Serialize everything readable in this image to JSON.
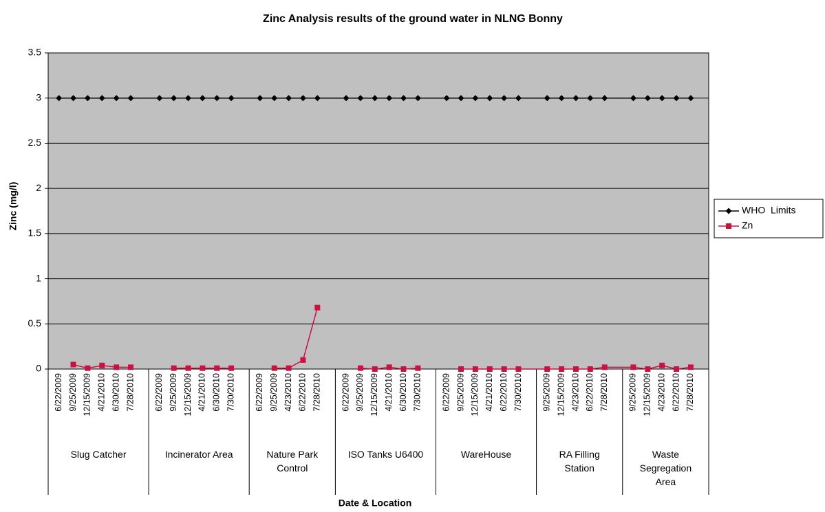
{
  "chart_data": {
    "type": "line",
    "title": "Zinc Analysis results of the ground water in NLNG Bonny",
    "y_label": "Zinc (mg/l)",
    "x_label": "Date & Location",
    "ylim": [
      0,
      3.5
    ],
    "yticks": [
      0,
      0.5,
      1,
      1.5,
      2,
      2.5,
      3,
      3.5
    ],
    "grid": true,
    "legend": "right",
    "groups": [
      {
        "label": "Slug Catcher",
        "categories": [
          "6/22/2009",
          "9/25/2009",
          "12/15/2009",
          "4/21/2010",
          "6/30/2010",
          "7/28/2010"
        ]
      },
      {
        "label": "Incinerator Area",
        "categories": [
          "6/22/2009",
          "9/25/2009",
          "12/15/2009",
          "4/21/2010",
          "6/30/2010",
          "7/30/2010"
        ]
      },
      {
        "label": "Nature Park Control",
        "categories": [
          "6/22/2009",
          "9/25/2009",
          "4/23/2010",
          "6/22/2010",
          "7/28/2010"
        ]
      },
      {
        "label": "ISO Tanks U6400",
        "categories": [
          "6/22/2009",
          "9/25/2009",
          "12/15/2009",
          "4/21/2010",
          "6/30/2010",
          "7/30/2010"
        ]
      },
      {
        "label": "WareHouse",
        "categories": [
          "6/22/2009",
          "9/25/2009",
          "12/15/2009",
          "4/21/2010",
          "6/22/2010",
          "7/30/2010"
        ]
      },
      {
        "label": "RA Filling Station",
        "categories": [
          "9/25/2009",
          "12/15/2009",
          "4/23/2010",
          "6/22/2010",
          "7/28/2010"
        ]
      },
      {
        "label": "Waste Segregation Area",
        "categories": [
          "9/25/2009",
          "12/15/2009",
          "4/23/2010",
          "6/22/2010",
          "7/28/2010"
        ]
      }
    ],
    "series": [
      {
        "name": "WHO  Limits",
        "color": "#000000",
        "marker": "diamond",
        "values": [
          [
            3,
            3,
            3,
            3,
            3,
            3
          ],
          [
            3,
            3,
            3,
            3,
            3,
            3
          ],
          [
            3,
            3,
            3,
            3,
            3
          ],
          [
            3,
            3,
            3,
            3,
            3,
            3
          ],
          [
            3,
            3,
            3,
            3,
            3,
            3
          ],
          [
            3,
            3,
            3,
            3,
            3
          ],
          [
            3,
            3,
            3,
            3,
            3
          ]
        ]
      },
      {
        "name": "Zn",
        "color": "#cc1040",
        "marker": "square",
        "values": [
          [
            null,
            0.05,
            0.01,
            0.04,
            0.02,
            0.02
          ],
          [
            null,
            0.01,
            0.01,
            0.01,
            0.01,
            0.01
          ],
          [
            null,
            0.01,
            0.01,
            0.1,
            0.68
          ],
          [
            null,
            0.01,
            0,
            0.02,
            0,
            0.01
          ],
          [
            null,
            0,
            0,
            0,
            0,
            0
          ],
          [
            0,
            0,
            0,
            0,
            0.02
          ],
          [
            0.02,
            0,
            0.04,
            0,
            0.02
          ]
        ]
      }
    ]
  }
}
